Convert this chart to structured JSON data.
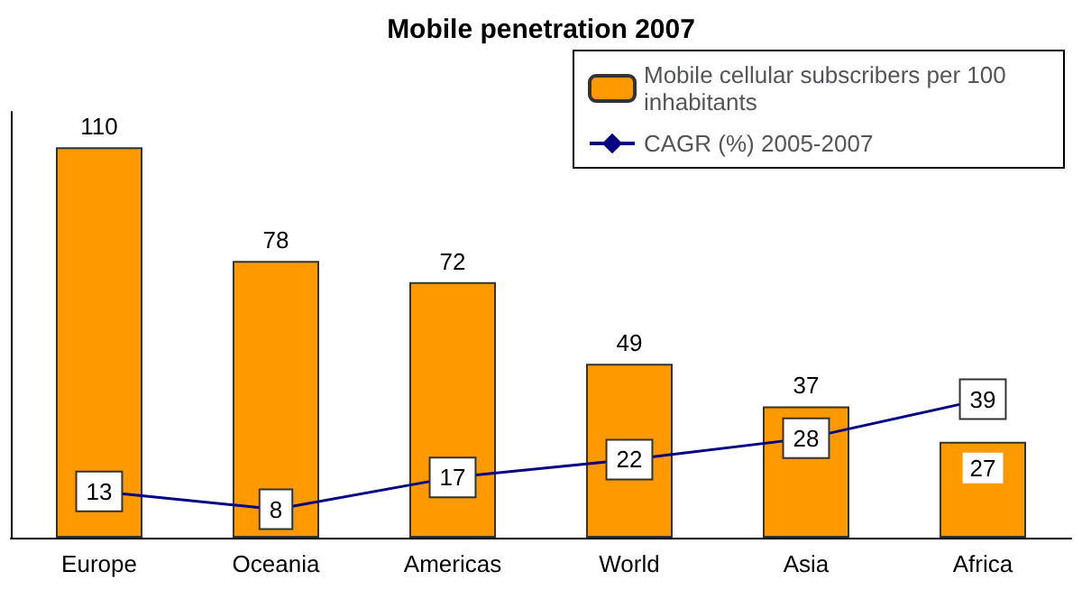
{
  "chart_data": {
    "type": "bar",
    "title": "Mobile penetration 2007",
    "categories": [
      "Europe",
      "Oceania",
      "Americas",
      "World",
      "Asia",
      "Africa"
    ],
    "series": [
      {
        "name": "Mobile cellular subscribers per 100 inhabitants",
        "color": "#ff9900",
        "values": [
          110,
          78,
          72,
          49,
          37,
          27
        ]
      },
      {
        "name": "CAGR (%) 2005-2007",
        "type": "line",
        "color": "#000080",
        "values": [
          13,
          8,
          17,
          22,
          28,
          39
        ]
      }
    ],
    "relative": false,
    "data_labels": true,
    "legend": "top right",
    "grid": false,
    "marker": "diamond",
    "line_style": "solid"
  }
}
